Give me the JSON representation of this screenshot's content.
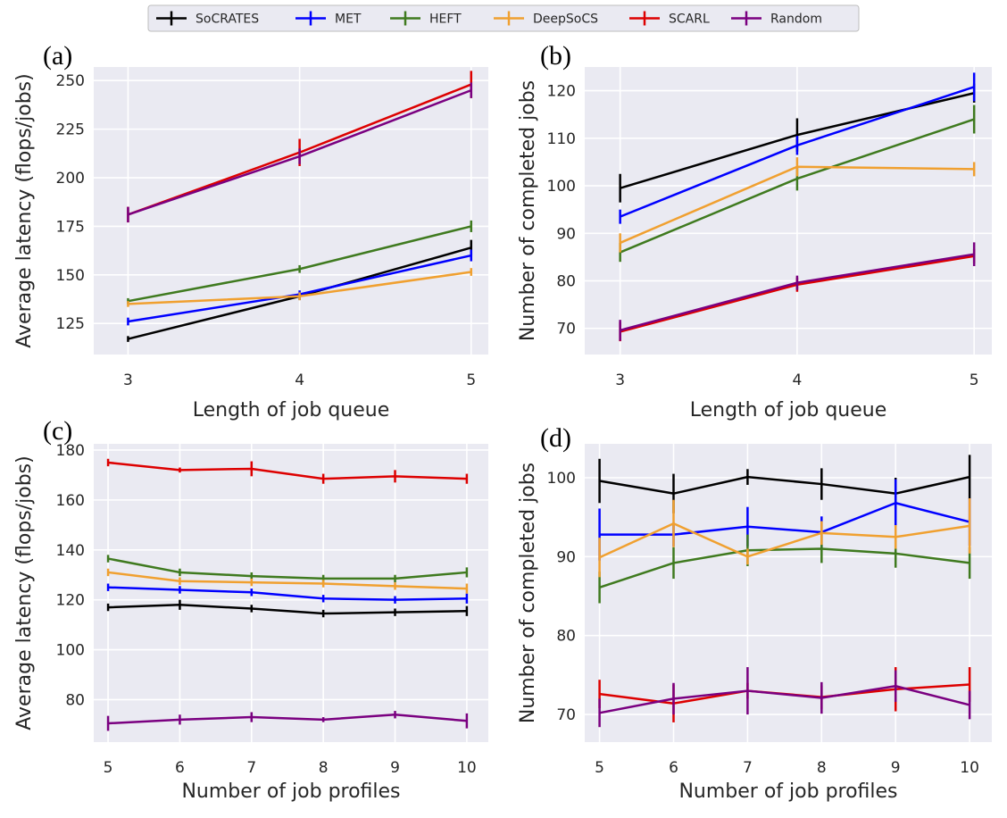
{
  "legend": {
    "entries": [
      {
        "name": "SoCRATES",
        "color": "#000000"
      },
      {
        "name": "MET",
        "color": "#0000ff"
      },
      {
        "name": "HEFT",
        "color": "#3f7a1f"
      },
      {
        "name": "DeepSoCS",
        "color": "#f0a030"
      },
      {
        "name": "SCARL",
        "color": "#dd0000"
      },
      {
        "name": "Random",
        "color": "#7a0080"
      }
    ]
  },
  "colors": {
    "background": "#eaeaf2",
    "grid": "#ffffff",
    "SoCRATES": "#000000",
    "MET": "#0000ff",
    "HEFT": "#3f7a1f",
    "DeepSoCS": "#f0a030",
    "SCARL": "#dd0000",
    "Random": "#7a0080"
  },
  "chart_data": [
    {
      "panel": "(a)",
      "type": "line",
      "xlabel": "Length of job queue",
      "ylabel": "Average latency (flops/jobs)",
      "x": [
        3,
        4,
        5
      ],
      "xticks": [
        3,
        4,
        5
      ],
      "yticks": [
        125,
        150,
        175,
        200,
        225,
        250
      ],
      "xlim": [
        2.8,
        5.1
      ],
      "ylim": [
        109,
        257
      ],
      "grid": true,
      "series": [
        {
          "name": "SoCRATES",
          "values": [
            117,
            139,
            164
          ],
          "errors": [
            1.5,
            2,
            4
          ]
        },
        {
          "name": "MET",
          "values": [
            126,
            140,
            160
          ],
          "errors": [
            2,
            2,
            3
          ]
        },
        {
          "name": "HEFT",
          "values": [
            136.5,
            153,
            175
          ],
          "errors": [
            1.5,
            2,
            3
          ]
        },
        {
          "name": "DeepSoCS",
          "values": [
            135,
            139,
            151.5
          ],
          "errors": [
            1.5,
            2,
            2
          ]
        },
        {
          "name": "SCARL",
          "values": [
            181,
            213,
            248
          ],
          "errors": [
            4,
            7,
            7
          ]
        },
        {
          "name": "Random",
          "values": [
            181,
            211,
            245
          ],
          "errors": [
            4,
            4,
            4
          ]
        }
      ]
    },
    {
      "panel": "(b)",
      "type": "line",
      "xlabel": "Length of job queue",
      "ylabel": "Number of completed jobs",
      "x": [
        3,
        4,
        5
      ],
      "xticks": [
        3,
        4,
        5
      ],
      "yticks": [
        70,
        80,
        90,
        100,
        110,
        120
      ],
      "xlim": [
        2.8,
        5.1
      ],
      "ylim": [
        64.5,
        125
      ],
      "grid": true,
      "series": [
        {
          "name": "SoCRATES",
          "values": [
            99.5,
            110.7,
            119.5
          ],
          "errors": [
            3,
            3.5,
            2
          ]
        },
        {
          "name": "MET",
          "values": [
            93.5,
            108.5,
            120.8
          ],
          "errors": [
            1.5,
            2,
            3
          ]
        },
        {
          "name": "HEFT",
          "values": [
            86,
            101.5,
            114
          ],
          "errors": [
            2,
            2.5,
            3
          ]
        },
        {
          "name": "DeepSoCS",
          "values": [
            88,
            104,
            103.5
          ],
          "errors": [
            2,
            2,
            1.5
          ]
        },
        {
          "name": "SCARL",
          "values": [
            69.3,
            79.2,
            85.2
          ],
          "errors": [
            2,
            1.5,
            1.5
          ]
        },
        {
          "name": "Random",
          "values": [
            69.6,
            79.6,
            85.6
          ],
          "errors": [
            2.2,
            1.5,
            2.5
          ]
        }
      ]
    },
    {
      "panel": "(c)",
      "type": "line",
      "xlabel": "Number of job profiles",
      "ylabel": "Average latency (flops/jobs)",
      "x": [
        5,
        6,
        7,
        8,
        9,
        10
      ],
      "xticks": [
        5,
        6,
        7,
        8,
        9,
        10
      ],
      "yticks": [
        80,
        100,
        120,
        140,
        160,
        180
      ],
      "xlim": [
        4.8,
        10.3
      ],
      "ylim": [
        63,
        182.5
      ],
      "grid": true,
      "series": [
        {
          "name": "SoCRATES",
          "values": [
            117,
            118,
            116.5,
            114.5,
            115,
            115.5
          ],
          "errors": [
            1.5,
            2,
            1.5,
            1.5,
            1.5,
            2
          ]
        },
        {
          "name": "MET",
          "values": [
            125,
            124,
            123,
            120.5,
            120,
            120.5
          ],
          "errors": [
            1.5,
            1.5,
            1.5,
            1.5,
            1.5,
            2
          ]
        },
        {
          "name": "HEFT",
          "values": [
            136.5,
            131,
            129.5,
            128.5,
            128.5,
            131
          ],
          "errors": [
            1.5,
            1.5,
            1.5,
            1.5,
            1.5,
            2
          ]
        },
        {
          "name": "DeepSoCS",
          "values": [
            131,
            127.5,
            127,
            126.5,
            125.5,
            124.5
          ],
          "errors": [
            1.5,
            1.5,
            1.5,
            1.5,
            1.5,
            2
          ]
        },
        {
          "name": "SCARL",
          "values": [
            175,
            172,
            172.5,
            168.5,
            169.5,
            168.5
          ],
          "errors": [
            1.5,
            1,
            3,
            2,
            2.5,
            2
          ]
        },
        {
          "name": "Random",
          "values": [
            70.5,
            72,
            73,
            72,
            74,
            71.5
          ],
          "errors": [
            3,
            2,
            2,
            1,
            1.5,
            3
          ]
        }
      ]
    },
    {
      "panel": "(d)",
      "type": "line",
      "xlabel": "Number of job profiles",
      "ylabel": "Number of completed jobs",
      "x": [
        5,
        6,
        7,
        8,
        9,
        10
      ],
      "xticks": [
        5,
        6,
        7,
        8,
        9,
        10
      ],
      "yticks": [
        70,
        80,
        90,
        100
      ],
      "xlim": [
        4.8,
        10.3
      ],
      "ylim": [
        66.5,
        104.3
      ],
      "grid": true,
      "series": [
        {
          "name": "SoCRATES",
          "values": [
            99.6,
            98,
            100.1,
            99.2,
            98,
            100.1
          ],
          "errors": [
            2.8,
            2.5,
            1,
            2,
            2,
            2.8
          ]
        },
        {
          "name": "MET",
          "values": [
            92.8,
            92.8,
            93.8,
            93.1,
            96.8,
            94.4
          ],
          "errors": [
            3.3,
            1.5,
            2.5,
            2,
            3,
            3
          ]
        },
        {
          "name": "HEFT",
          "values": [
            86.1,
            89.2,
            90.8,
            91,
            90.4,
            89.2
          ],
          "errors": [
            2,
            2,
            2,
            1.8,
            1.8,
            2
          ]
        },
        {
          "name": "DeepSoCS",
          "values": [
            89.9,
            94.2,
            90,
            93,
            92.5,
            93.9
          ],
          "errors": [
            2.5,
            3,
            1,
            1.5,
            1.5,
            3.5
          ]
        },
        {
          "name": "SCARL",
          "values": [
            72.6,
            71.4,
            73,
            72.2,
            73.2,
            73.8
          ],
          "errors": [
            1.8,
            2.4,
            1,
            1.5,
            2.8,
            2.2
          ]
        },
        {
          "name": "Random",
          "values": [
            70.2,
            72,
            73,
            72.1,
            73.6,
            71.2
          ],
          "errors": [
            1.8,
            2,
            3,
            2,
            2,
            1.8
          ]
        }
      ]
    }
  ]
}
